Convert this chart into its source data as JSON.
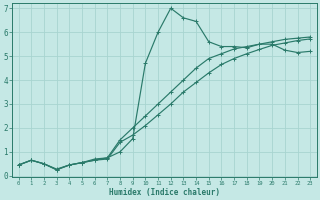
{
  "xlabel": "Humidex (Indice chaleur)",
  "xlim": [
    -0.5,
    23.5
  ],
  "ylim": [
    -0.05,
    7.2
  ],
  "xticks": [
    0,
    1,
    2,
    3,
    4,
    5,
    6,
    7,
    8,
    9,
    10,
    11,
    12,
    13,
    14,
    15,
    16,
    17,
    18,
    19,
    20,
    21,
    22,
    23
  ],
  "yticks": [
    0,
    1,
    2,
    3,
    4,
    5,
    6,
    7
  ],
  "bg_color": "#c5e8e5",
  "grid_color": "#a8d4d0",
  "line_color": "#2a7a6a",
  "series": [
    {
      "x": [
        0,
        1,
        2,
        3,
        4,
        5,
        6,
        7,
        8,
        9,
        10,
        11,
        12,
        13,
        14,
        15,
        16,
        17,
        18,
        19,
        20,
        21,
        22,
        23
      ],
      "y": [
        0.45,
        0.65,
        0.5,
        0.28,
        0.45,
        0.55,
        0.7,
        0.75,
        1.0,
        1.55,
        4.7,
        6.0,
        7.0,
        6.6,
        6.45,
        5.6,
        5.4,
        5.4,
        5.35,
        5.5,
        5.5,
        5.25,
        5.15,
        5.2
      ]
    },
    {
      "x": [
        0,
        1,
        2,
        3,
        4,
        5,
        6,
        7,
        8,
        9,
        10,
        11,
        12,
        13,
        14,
        15,
        16,
        17,
        18,
        19,
        20,
        21,
        22,
        23
      ],
      "y": [
        0.45,
        0.65,
        0.5,
        0.25,
        0.45,
        0.55,
        0.65,
        0.75,
        1.5,
        2.0,
        2.5,
        3.0,
        3.5,
        4.0,
        4.5,
        4.9,
        5.1,
        5.3,
        5.4,
        5.5,
        5.6,
        5.7,
        5.75,
        5.8
      ]
    },
    {
      "x": [
        0,
        1,
        2,
        3,
        4,
        5,
        6,
        7,
        8,
        9,
        10,
        11,
        12,
        13,
        14,
        15,
        16,
        17,
        18,
        19,
        20,
        21,
        22,
        23
      ],
      "y": [
        0.45,
        0.65,
        0.5,
        0.25,
        0.45,
        0.55,
        0.65,
        0.7,
        1.4,
        1.7,
        2.1,
        2.55,
        3.0,
        3.5,
        3.9,
        4.3,
        4.65,
        4.9,
        5.1,
        5.28,
        5.45,
        5.55,
        5.65,
        5.72
      ]
    }
  ]
}
